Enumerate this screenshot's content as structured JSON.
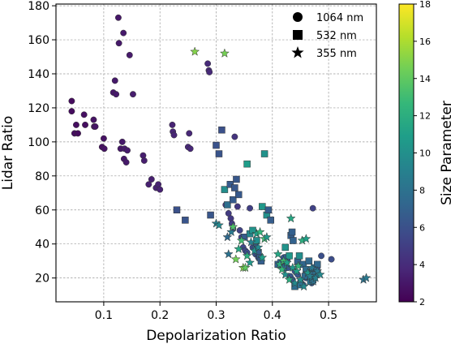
{
  "chart_data": {
    "type": "scatter",
    "xlabel": "Depolarization Ratio",
    "ylabel": "Lidar Ratio",
    "xlim": [
      0.015,
      0.585
    ],
    "ylim": [
      6,
      181
    ],
    "x_ticks": [
      "0.1",
      "0.2",
      "0.3",
      "0.4",
      "0.5"
    ],
    "y_ticks": [
      "20",
      "40",
      "60",
      "80",
      "100",
      "120",
      "140",
      "160",
      "180"
    ],
    "grid": true,
    "legend_position": "top-right",
    "colorbar": {
      "label": "Size Parameter",
      "min": 2,
      "max": 18,
      "ticks": [
        "2",
        "4",
        "6",
        "8",
        "10",
        "12",
        "14",
        "16",
        "18"
      ],
      "colormap": [
        "#440154",
        "#482878",
        "#3e4989",
        "#31688e",
        "#26828e",
        "#1f9e89",
        "#35b779",
        "#6ece58",
        "#b5de2b",
        "#fde725"
      ]
    },
    "series": [
      {
        "name": "1064 nm",
        "marker": "circle",
        "points": [
          [
            0.043,
            124,
            2.5
          ],
          [
            0.043,
            118,
            2.5
          ],
          [
            0.048,
            105,
            2.6
          ],
          [
            0.051,
            110,
            2.6
          ],
          [
            0.054,
            105,
            2.5
          ],
          [
            0.065,
            116,
            2.7
          ],
          [
            0.067,
            110,
            2.6
          ],
          [
            0.082,
            113,
            2.8
          ],
          [
            0.083,
            109,
            2.8
          ],
          [
            0.085,
            109,
            2.9
          ],
          [
            0.097,
            97,
            2.7
          ],
          [
            0.1,
            102,
            2.8
          ],
          [
            0.101,
            96,
            2.8
          ],
          [
            0.117,
            129,
            3.0
          ],
          [
            0.12,
            136,
            3.1
          ],
          [
            0.122,
            128,
            3.1
          ],
          [
            0.126,
            173,
            3.0
          ],
          [
            0.127,
            158,
            3.1
          ],
          [
            0.13,
            96,
            3.0
          ],
          [
            0.133,
            100,
            3.1
          ],
          [
            0.135,
            164,
            3.1
          ],
          [
            0.136,
            90,
            3.0
          ],
          [
            0.137,
            96,
            3.2
          ],
          [
            0.14,
            88,
            3.1
          ],
          [
            0.142,
            95,
            3.2
          ],
          [
            0.146,
            151,
            3.2
          ],
          [
            0.152,
            128,
            3.3
          ],
          [
            0.17,
            92,
            3.3
          ],
          [
            0.172,
            89,
            3.3
          ],
          [
            0.18,
            75,
            3.4
          ],
          [
            0.185,
            78,
            3.4
          ],
          [
            0.193,
            73,
            3.5
          ],
          [
            0.197,
            75,
            3.5
          ],
          [
            0.2,
            72,
            3.5
          ],
          [
            0.222,
            110,
            3.6
          ],
          [
            0.223,
            106,
            3.7
          ],
          [
            0.225,
            104,
            3.7
          ],
          [
            0.25,
            97,
            3.8
          ],
          [
            0.252,
            105,
            3.8
          ],
          [
            0.254,
            96,
            3.8
          ],
          [
            0.285,
            146,
            3.9
          ],
          [
            0.287,
            142,
            3.9
          ],
          [
            0.288,
            141,
            3.9
          ],
          [
            0.317,
            63,
            4.5
          ],
          [
            0.322,
            58,
            4.8
          ],
          [
            0.326,
            55,
            4.7
          ],
          [
            0.328,
            52,
            4.9
          ],
          [
            0.33,
            49,
            5.0
          ],
          [
            0.333,
            103,
            4.4
          ],
          [
            0.338,
            62,
            4.6
          ],
          [
            0.342,
            48,
            5.2
          ],
          [
            0.345,
            44,
            5.4
          ],
          [
            0.348,
            38,
            5.5
          ],
          [
            0.352,
            36,
            5.6
          ],
          [
            0.355,
            35,
            5.8
          ],
          [
            0.36,
            61,
            5.0
          ],
          [
            0.365,
            38,
            5.7
          ],
          [
            0.37,
            34,
            5.9
          ],
          [
            0.375,
            32,
            6.1
          ],
          [
            0.42,
            32,
            6.2
          ],
          [
            0.425,
            29,
            6.3
          ],
          [
            0.428,
            26,
            6.4
          ],
          [
            0.432,
            21,
            6.5
          ],
          [
            0.436,
            19,
            6.5
          ],
          [
            0.44,
            24,
            6.3
          ],
          [
            0.445,
            22,
            6.4
          ],
          [
            0.45,
            18,
            6.5
          ],
          [
            0.455,
            16,
            6.6
          ],
          [
            0.46,
            20,
            6.4
          ],
          [
            0.465,
            23,
            6.3
          ],
          [
            0.47,
            17,
            6.5
          ],
          [
            0.472,
            61,
            5.2
          ],
          [
            0.475,
            22,
            6.4
          ],
          [
            0.48,
            26,
            6.3
          ],
          [
            0.487,
            33,
            5.9
          ],
          [
            0.505,
            31,
            5.8
          ]
        ]
      },
      {
        "name": "532 nm",
        "marker": "square",
        "points": [
          [
            0.23,
            60,
            6.0
          ],
          [
            0.245,
            54,
            6.2
          ],
          [
            0.29,
            57,
            6.3
          ],
          [
            0.3,
            98,
            6.1
          ],
          [
            0.305,
            93,
            6.2
          ],
          [
            0.31,
            107,
            6.0
          ],
          [
            0.315,
            72,
            9.8
          ],
          [
            0.32,
            63,
            7.8
          ],
          [
            0.325,
            75,
            6.5
          ],
          [
            0.33,
            66,
            6.6
          ],
          [
            0.333,
            73,
            6.4
          ],
          [
            0.336,
            78,
            6.4
          ],
          [
            0.34,
            69,
            6.5
          ],
          [
            0.35,
            44,
            6.6
          ],
          [
            0.355,
            87,
            10.8
          ],
          [
            0.36,
            46,
            9.5
          ],
          [
            0.365,
            48,
            10.2
          ],
          [
            0.37,
            38,
            6.7
          ],
          [
            0.372,
            42,
            9.8
          ],
          [
            0.375,
            35,
            6.8
          ],
          [
            0.378,
            32,
            6.7
          ],
          [
            0.38,
            30,
            6.8
          ],
          [
            0.382,
            62,
            10.5
          ],
          [
            0.386,
            93,
            10.1
          ],
          [
            0.39,
            57,
            10.0
          ],
          [
            0.393,
            60,
            6.6
          ],
          [
            0.397,
            54,
            6.7
          ],
          [
            0.41,
            28,
            7.0
          ],
          [
            0.415,
            29,
            7.2
          ],
          [
            0.42,
            26,
            7.4
          ],
          [
            0.423,
            38,
            10.2
          ],
          [
            0.426,
            32,
            6.9
          ],
          [
            0.43,
            33,
            10.5
          ],
          [
            0.433,
            45,
            6.8
          ],
          [
            0.435,
            47,
            6.9
          ],
          [
            0.437,
            42,
            7.0
          ],
          [
            0.44,
            15,
            7.6
          ],
          [
            0.445,
            30,
            7.1
          ],
          [
            0.448,
            33,
            9.9
          ],
          [
            0.45,
            16,
            7.8
          ],
          [
            0.455,
            28,
            7.3
          ],
          [
            0.458,
            21,
            7.5
          ],
          [
            0.46,
            25,
            7.6
          ],
          [
            0.465,
            30,
            7.4
          ],
          [
            0.468,
            18,
            7.9
          ],
          [
            0.47,
            23,
            7.7
          ],
          [
            0.472,
            19,
            8.0
          ],
          [
            0.475,
            26,
            7.5
          ],
          [
            0.478,
            22,
            7.9
          ],
          [
            0.48,
            28,
            7.4
          ]
        ]
      },
      {
        "name": "355 nm",
        "marker": "star",
        "points": [
          [
            0.262,
            153,
            15.0
          ],
          [
            0.3,
            52,
            9.0
          ],
          [
            0.305,
            51,
            9.5
          ],
          [
            0.315,
            152,
            14.6
          ],
          [
            0.32,
            44,
            7.5
          ],
          [
            0.322,
            34,
            8.0
          ],
          [
            0.327,
            47,
            8.5
          ],
          [
            0.33,
            50,
            13.5
          ],
          [
            0.335,
            31,
            14.5
          ],
          [
            0.34,
            37,
            11.5
          ],
          [
            0.345,
            42,
            13.0
          ],
          [
            0.348,
            26,
            15.0
          ],
          [
            0.352,
            26,
            14.0
          ],
          [
            0.355,
            33,
            12.0
          ],
          [
            0.36,
            29,
            10.5
          ],
          [
            0.362,
            41,
            9.0
          ],
          [
            0.368,
            36,
            10.0
          ],
          [
            0.372,
            46,
            11.0
          ],
          [
            0.375,
            38,
            9.5
          ],
          [
            0.378,
            47,
            12.5
          ],
          [
            0.382,
            32,
            11.0
          ],
          [
            0.386,
            43,
            13.0
          ],
          [
            0.39,
            44,
            10.5
          ],
          [
            0.41,
            34,
            11.5
          ],
          [
            0.413,
            28,
            12.0
          ],
          [
            0.417,
            25,
            12.5
          ],
          [
            0.42,
            30,
            13.0
          ],
          [
            0.423,
            22,
            10.0
          ],
          [
            0.426,
            29,
            11.0
          ],
          [
            0.43,
            19,
            12.0
          ],
          [
            0.433,
            55,
            11.5
          ],
          [
            0.436,
            26,
            10.5
          ],
          [
            0.44,
            17,
            9.5
          ],
          [
            0.443,
            24,
            11.0
          ],
          [
            0.446,
            27,
            12.5
          ],
          [
            0.45,
            19,
            10.0
          ],
          [
            0.453,
            42,
            12.0
          ],
          [
            0.456,
            15,
            9.5
          ],
          [
            0.46,
            43,
            11.0
          ],
          [
            0.463,
            23,
            10.5
          ],
          [
            0.467,
            21,
            9.0
          ],
          [
            0.47,
            26,
            8.5
          ],
          [
            0.473,
            18,
            8.0
          ],
          [
            0.477,
            20,
            9.0
          ],
          [
            0.48,
            24,
            8.5
          ],
          [
            0.485,
            22,
            9.5
          ],
          [
            0.562,
            19,
            8.0
          ],
          [
            0.567,
            20,
            8.5
          ]
        ]
      }
    ]
  }
}
